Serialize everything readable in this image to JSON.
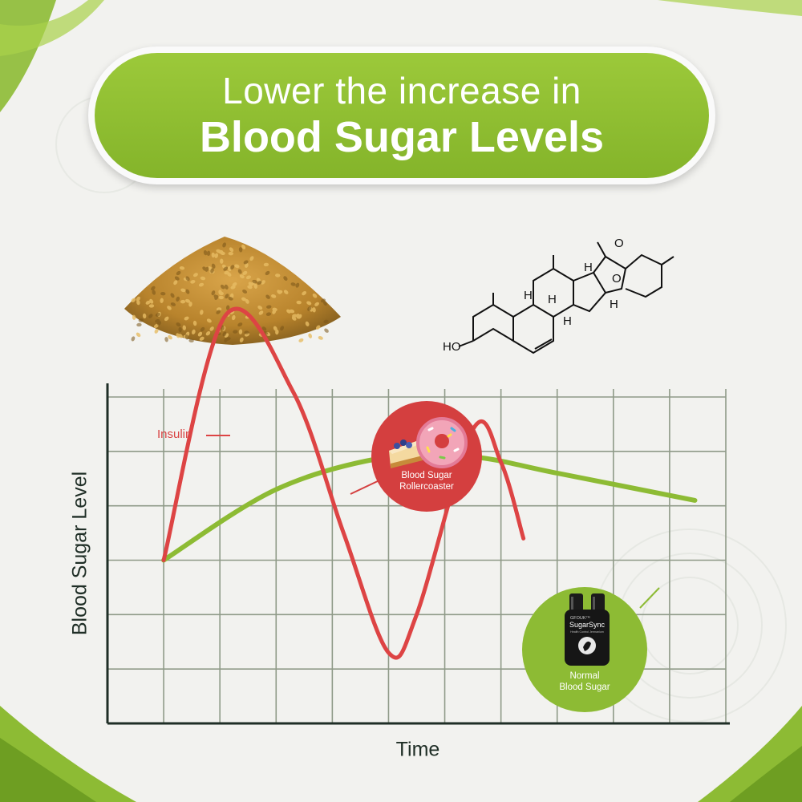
{
  "banner": {
    "line1": "Lower the increase in",
    "line2": "Blood Sugar Levels"
  },
  "molecule": {
    "labels": [
      "O",
      "O",
      "HO",
      "H",
      "H",
      "H",
      "H",
      "H"
    ]
  },
  "chart_data": {
    "type": "line",
    "xlabel": "Time",
    "ylabel": "Blood Sugar Level",
    "grid": true,
    "axis_ticks": false,
    "series": [
      {
        "name": "Insulin",
        "color": "#dd4444",
        "description_points": [
          [
            0,
            3
          ],
          [
            1.1,
            7.5
          ],
          [
            2.3,
            6.1
          ],
          [
            3.2,
            3.5
          ],
          [
            4.0,
            1.3
          ],
          [
            4.5,
            2.0
          ],
          [
            5.5,
            5.4
          ],
          [
            6.0,
            4.8
          ],
          [
            6.4,
            3.4
          ]
        ]
      },
      {
        "name": "",
        "color": "#8dbb34",
        "description_points": [
          [
            0,
            3
          ],
          [
            2,
            4.3
          ],
          [
            4,
            4.9
          ],
          [
            5.5,
            4.9
          ],
          [
            7,
            4.6
          ],
          [
            9.45,
            4.1
          ]
        ]
      }
    ],
    "annotations": [
      {
        "label": "Blood Sugar Rollercoaster",
        "target": "Insulin",
        "color": "#d43f3f"
      },
      {
        "label": "Normal Blood Sugar",
        "target": "green",
        "color": "#8dbb34"
      }
    ]
  },
  "badges": {
    "red": {
      "line1": "Blood Sugar",
      "line2": "Rollercoaster"
    },
    "green": {
      "line1": "Normal",
      "line2": "Blood Sugar",
      "product_brand": "SugarSync",
      "product_maker": "GFOUK™",
      "product_sub": "Health Control Jermanium"
    }
  },
  "colors": {
    "green": "#8dbb34",
    "red": "#dd4444",
    "grid": "#8f9a88",
    "axis": "#1f2e26"
  }
}
